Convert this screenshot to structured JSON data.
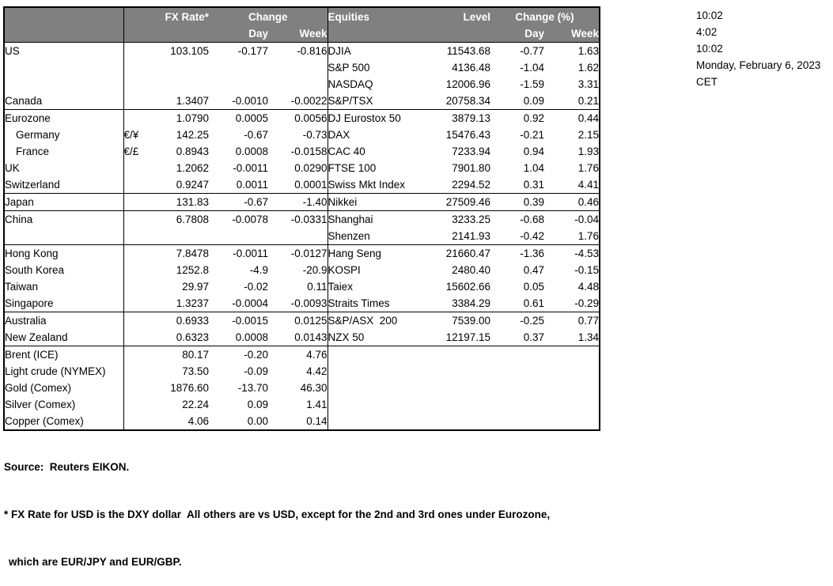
{
  "colors": {
    "header_bg": "#808080",
    "header_text": "#ffffff",
    "border": "#000000",
    "body_text": "#000000",
    "background": "#ffffff"
  },
  "header": {
    "fx_rate": "FX Rate*",
    "fx_change": "Change",
    "fx_day": "Day",
    "fx_week": "Week",
    "equities": "Equities",
    "level": "Level",
    "eq_change": "Change (%)",
    "eq_day": "Day",
    "eq_week": "Week"
  },
  "table": {
    "rows": [
      {
        "label": "US",
        "pair": "",
        "rate": "103.105",
        "day": "-0.177",
        "week": "-0.816",
        "eq_label": "DJIA",
        "level": "11543.68",
        "eq_day": "-0.77",
        "eq_week": "1.63"
      },
      {
        "label": "",
        "pair": "",
        "rate": "",
        "day": "",
        "week": "",
        "eq_label": "S&P 500",
        "level": "4136.48",
        "eq_day": "-1.04",
        "eq_week": "1.62"
      },
      {
        "label": "",
        "pair": "",
        "rate": "",
        "day": "",
        "week": "",
        "eq_label": "NASDAQ",
        "level": "12006.96",
        "eq_day": "-1.59",
        "eq_week": "3.31"
      },
      {
        "label": "Canada",
        "pair": "",
        "rate": "1.3407",
        "day": "-0.0010",
        "week": "-0.0022",
        "eq_label": "S&P/TSX",
        "level": "20758.34",
        "eq_day": "0.09",
        "eq_week": "0.21",
        "section_end": true
      },
      {
        "label": "Eurozone",
        "pair": "",
        "rate": "1.0790",
        "day": "0.0005",
        "week": "0.0056",
        "eq_label": "DJ Eurostox 50",
        "level": "3879.13",
        "eq_day": "0.92",
        "eq_week": "0.44"
      },
      {
        "label": "Germany",
        "indent": true,
        "pair": "€/¥",
        "rate": "142.25",
        "day": "-0.67",
        "week": "-0.73",
        "eq_label": "DAX",
        "level": "15476.43",
        "eq_day": "-0.21",
        "eq_week": "2.15"
      },
      {
        "label": "France",
        "indent": true,
        "pair": "€/£",
        "rate": "0.8943",
        "day": "0.0008",
        "week": "-0.0158",
        "eq_label": "CAC 40",
        "level": "7233.94",
        "eq_day": "0.94",
        "eq_week": "1.93"
      },
      {
        "label": "UK",
        "pair": "",
        "rate": "1.2062",
        "day": "-0.0011",
        "week": "0.0290",
        "eq_label": "FTSE 100",
        "level": "7901.80",
        "eq_day": "1.04",
        "eq_week": "1.76"
      },
      {
        "label": "Switzerland",
        "pair": "",
        "rate": "0.9247",
        "day": "0.0011",
        "week": "0.0001",
        "eq_label": "Swiss Mkt Index",
        "level": "2294.52",
        "eq_day": "0.31",
        "eq_week": "4.41",
        "section_end": true
      },
      {
        "label": "Japan",
        "pair": "",
        "rate": "131.83",
        "day": "-0.67",
        "week": "-1.40",
        "eq_label": "Nikkei",
        "level": "27509.46",
        "eq_day": "0.39",
        "eq_week": "0.46",
        "section_end": true
      },
      {
        "label": "China",
        "pair": "",
        "rate": "6.7808",
        "day": "-0.0078",
        "week": "-0.0331",
        "eq_label": "Shanghai",
        "level": "3233.25",
        "eq_day": "-0.68",
        "eq_week": "-0.04"
      },
      {
        "label": "",
        "pair": "",
        "rate": "",
        "day": "",
        "week": "",
        "eq_label": "Shenzen",
        "level": "2141.93",
        "eq_day": "-0.42",
        "eq_week": "1.76",
        "section_end": true
      },
      {
        "label": "Hong Kong",
        "pair": "",
        "rate": "7.8478",
        "day": "-0.0011",
        "week": "-0.0127",
        "eq_label": "Hang Seng",
        "level": "21660.47",
        "eq_day": "-1.36",
        "eq_week": "-4.53"
      },
      {
        "label": "South Korea",
        "pair": "",
        "rate": "1252.8",
        "day": "-4.9",
        "week": "-20.9",
        "eq_label": "KOSPI",
        "level": "2480.40",
        "eq_day": "0.47",
        "eq_week": "-0.15"
      },
      {
        "label": "Taiwan",
        "pair": "",
        "rate": "29.97",
        "day": "-0.02",
        "week": "0.11",
        "eq_label": "Taiex",
        "level": "15602.66",
        "eq_day": "0.05",
        "eq_week": "4.48"
      },
      {
        "label": "Singapore",
        "pair": "",
        "rate": "1.3237",
        "day": "-0.0004",
        "week": "-0.0093",
        "eq_label": "Straits Times",
        "level": "3384.29",
        "eq_day": "0.61",
        "eq_week": "-0.29",
        "section_end": true
      },
      {
        "label": "Australia",
        "pair": "",
        "rate": "0.6933",
        "day": "-0.0015",
        "week": "0.0125",
        "eq_label": "S&P/ASX  200",
        "level": "7539.00",
        "eq_day": "-0.25",
        "eq_week": "0.77"
      },
      {
        "label": "New Zealand",
        "pair": "",
        "rate": "0.6323",
        "day": "0.0008",
        "week": "0.0143",
        "eq_label": "NZX 50",
        "level": "12197.15",
        "eq_day": "0.37",
        "eq_week": "1.34",
        "section_end": true
      },
      {
        "label": "Brent (ICE)",
        "pair": "",
        "rate": "80.17",
        "day": "-0.20",
        "week": "4.76",
        "eq_label": "",
        "level": "",
        "eq_day": "",
        "eq_week": ""
      },
      {
        "label": "Light crude (NYMEX)",
        "pair": "",
        "rate": "73.50",
        "day": "-0.09",
        "week": "4.42",
        "eq_label": "",
        "level": "",
        "eq_day": "",
        "eq_week": ""
      },
      {
        "label": "Gold (Comex)",
        "pair": "",
        "rate": "1876.60",
        "day": "-13.70",
        "week": "46.30",
        "eq_label": "",
        "level": "",
        "eq_day": "",
        "eq_week": ""
      },
      {
        "label": "Silver (Comex)",
        "pair": "",
        "rate": "22.24",
        "day": "0.09",
        "week": "1.41",
        "eq_label": "",
        "level": "",
        "eq_day": "",
        "eq_week": ""
      },
      {
        "label": "Copper (Comex)",
        "pair": "",
        "rate": "4.06",
        "day": "0.00",
        "week": "0.14",
        "eq_label": "",
        "level": "",
        "eq_day": "",
        "eq_week": ""
      }
    ]
  },
  "timestamps": {
    "lines": [
      "10:02",
      "4:02",
      "10:02",
      "Monday, February 6, 2023",
      "CET"
    ]
  },
  "footnotes": {
    "source": "Source:  Reuters EIKON.",
    "line1": "* FX Rate for USD is the DXY dollar  All others are vs USD, except for the 2nd and 3rd ones under Eurozone,",
    "line2": "which are EUR/JPY and EUR/GBP."
  }
}
